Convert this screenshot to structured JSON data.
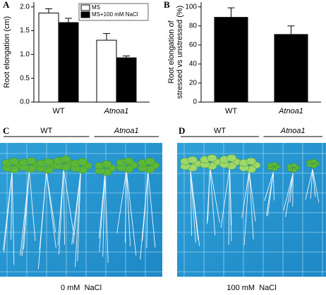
{
  "chart_data": [
    {
      "type": "bar",
      "panel": "A",
      "ylabel": [
        "Root elongation (cm)"
      ],
      "categories": [
        "WT",
        "Atnoa1"
      ],
      "series": [
        {
          "name": "MS",
          "color": "#ffffff",
          "values": [
            1.87,
            1.3
          ],
          "errors": [
            0.09,
            0.14
          ]
        },
        {
          "name": "MS+100 mM NaCl",
          "color": "#000000",
          "values": [
            1.67,
            0.93
          ],
          "errors": [
            0.09,
            0.04
          ]
        }
      ],
      "ylim": [
        0,
        2.1
      ],
      "yticks": [
        {
          "value": 0,
          "label": "0.0"
        },
        {
          "value": 0.5,
          "label": "0.5"
        },
        {
          "value": 1,
          "label": "1.0"
        },
        {
          "value": 1.5,
          "label": "1.5"
        },
        {
          "value": 2,
          "label": "2.0"
        }
      ],
      "legend": "top-right"
    },
    {
      "type": "bar",
      "panel": "B",
      "ylabel": [
        "Root elongation of",
        "stressed vs unstressed (%)"
      ],
      "categories": [
        "WT",
        "Atnoa1"
      ],
      "series": [
        {
          "color": "#000000",
          "values": [
            89,
            71
          ],
          "errors": [
            10,
            9
          ]
        }
      ],
      "ylim": [
        0,
        105
      ],
      "yticks": [
        0,
        20,
        40,
        60,
        80,
        100
      ]
    }
  ],
  "photos": [
    {
      "panel": "C",
      "groups": [
        "WT",
        "Atnoa1"
      ],
      "caption": "0 mM  NaCl"
    },
    {
      "panel": "D",
      "groups": [
        "WT",
        "Atnoa1"
      ],
      "caption": "100 mM  NaCl"
    }
  ]
}
